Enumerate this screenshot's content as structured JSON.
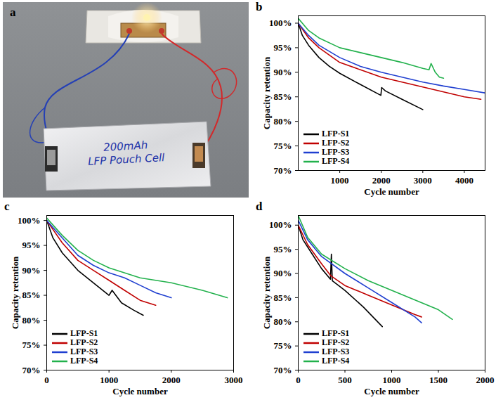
{
  "photo": {
    "panel": "a",
    "texts": [
      "200mAh",
      "LFP Pouch Cell"
    ]
  },
  "chart_data": [
    {
      "panel": "b",
      "type": "line",
      "xlabel": "Cycle number",
      "ylabel": "Capacity retention",
      "xlim": [
        0,
        4500
      ],
      "xticks": [
        1000,
        2000,
        3000,
        4000
      ],
      "ylim": [
        70,
        101.5
      ],
      "yticks": [
        {
          "value": 70,
          "label": "70%"
        },
        {
          "value": 75,
          "label": "75%"
        },
        {
          "value": 80,
          "label": "80%"
        },
        {
          "value": 85,
          "label": "85%"
        },
        {
          "value": 90,
          "label": "90%"
        },
        {
          "value": 95,
          "label": "95%"
        },
        {
          "value": 100,
          "label": "100%"
        }
      ],
      "grid": false,
      "legend": "lower left",
      "series": [
        {
          "name": "LFP-S1",
          "color": "#000000",
          "x": [
            0,
            100,
            250,
            500,
            750,
            1000,
            1500,
            1990,
            2010,
            2100,
            2500,
            3000
          ],
          "values": [
            100,
            97.5,
            95.5,
            93,
            91.2,
            89.8,
            87.5,
            85.3,
            86.9,
            86.2,
            84.5,
            82.4
          ]
        },
        {
          "name": "LFP-S2",
          "color": "#c00000",
          "x": [
            0,
            250,
            500,
            1000,
            1500,
            2000,
            2500,
            3000,
            3500,
            4000,
            4400
          ],
          "values": [
            100,
            97,
            95,
            92,
            90.5,
            89,
            88,
            87,
            86,
            85,
            84.5
          ]
        },
        {
          "name": "LFP-S3",
          "color": "#1f3fd0",
          "x": [
            0,
            250,
            500,
            1000,
            1500,
            2000,
            2500,
            3000,
            3500,
            4000,
            4500
          ],
          "values": [
            100,
            97.5,
            95.5,
            93,
            91.2,
            90,
            89,
            88,
            87.2,
            86.5,
            85.8
          ]
        },
        {
          "name": "LFP-S4",
          "color": "#22b14c",
          "x": [
            0,
            250,
            500,
            1000,
            1500,
            2000,
            2500,
            3000,
            3150,
            3200,
            3300,
            3400,
            3500
          ],
          "values": [
            101,
            98.5,
            97,
            95,
            94,
            93,
            92,
            90.8,
            90.5,
            91.8,
            90,
            89,
            88.8
          ]
        }
      ]
    },
    {
      "panel": "c",
      "type": "line",
      "xlabel": "Cycle number",
      "ylabel": "Capacity retention",
      "xlim": [
        0,
        3000
      ],
      "xticks": [
        0,
        1000,
        2000,
        3000
      ],
      "ylim": [
        70,
        101
      ],
      "yticks": [
        {
          "value": 70,
          "label": "70%"
        },
        {
          "value": 75,
          "label": "75%"
        },
        {
          "value": 80,
          "label": "80%"
        },
        {
          "value": 85,
          "label": "85%"
        },
        {
          "value": 90,
          "label": "90%"
        },
        {
          "value": 95,
          "label": "95%"
        },
        {
          "value": 100,
          "label": "100%"
        }
      ],
      "grid": false,
      "legend": "lower left",
      "series": [
        {
          "name": "LFP-S1",
          "color": "#000000",
          "x": [
            0,
            100,
            250,
            500,
            750,
            1000,
            1050,
            1200,
            1400,
            1550
          ],
          "values": [
            100,
            96.5,
            93.5,
            90,
            87.5,
            85,
            86,
            83.5,
            82,
            81
          ]
        },
        {
          "name": "LFP-S2",
          "color": "#c00000",
          "x": [
            0,
            250,
            500,
            750,
            1000,
            1250,
            1500,
            1750
          ],
          "values": [
            100,
            95.5,
            92,
            90,
            88,
            86,
            84,
            83
          ]
        },
        {
          "name": "LFP-S3",
          "color": "#1f3fd0",
          "x": [
            0,
            250,
            500,
            750,
            1000,
            1250,
            1500,
            1750,
            2000
          ],
          "values": [
            100,
            96.5,
            93,
            91,
            89.5,
            88.5,
            87,
            85.5,
            84.5
          ]
        },
        {
          "name": "LFP-S4",
          "color": "#22b14c",
          "x": [
            0,
            250,
            500,
            750,
            1000,
            1500,
            2000,
            2500,
            2900
          ],
          "values": [
            100.5,
            97,
            94,
            92,
            90.5,
            88.5,
            87.5,
            86,
            84.5
          ]
        }
      ]
    },
    {
      "panel": "d",
      "type": "line",
      "xlabel": "Cycle number",
      "ylabel": "Capacity retention",
      "xlim": [
        0,
        2000
      ],
      "xticks": [
        0,
        500,
        1000,
        1500,
        2000
      ],
      "ylim": [
        70,
        102
      ],
      "yticks": [
        {
          "value": 70,
          "label": "70%"
        },
        {
          "value": 75,
          "label": "75%"
        },
        {
          "value": 80,
          "label": "80%"
        },
        {
          "value": 85,
          "label": "85%"
        },
        {
          "value": 90,
          "label": "90%"
        },
        {
          "value": 95,
          "label": "95%"
        },
        {
          "value": 100,
          "label": "100%"
        }
      ],
      "grid": false,
      "legend": "lower left",
      "series": [
        {
          "name": "LFP-S1",
          "color": "#000000",
          "x": [
            0,
            50,
            150,
            250,
            345,
            355,
            365,
            500,
            700,
            800,
            900
          ],
          "values": [
            100,
            97,
            94,
            91,
            88.8,
            94,
            88.5,
            86.5,
            83,
            81,
            79
          ]
        },
        {
          "name": "LFP-S2",
          "color": "#c00000",
          "x": [
            0,
            100,
            250,
            350,
            500,
            750,
            1000,
            1250,
            1320
          ],
          "values": [
            100,
            96,
            92,
            89.5,
            87.5,
            85.5,
            83.5,
            81.5,
            81
          ]
        },
        {
          "name": "LFP-S3",
          "color": "#1f3fd0",
          "x": [
            0,
            100,
            250,
            500,
            750,
            1000,
            1250,
            1320
          ],
          "values": [
            101,
            97,
            93.5,
            90,
            87,
            84,
            81,
            79.8
          ]
        },
        {
          "name": "LFP-S4",
          "color": "#22b14c",
          "x": [
            0,
            100,
            250,
            500,
            750,
            1000,
            1250,
            1500,
            1650
          ],
          "values": [
            102,
            97.5,
            94,
            91,
            88.5,
            86.5,
            84.5,
            82.5,
            80.5
          ]
        }
      ]
    }
  ]
}
